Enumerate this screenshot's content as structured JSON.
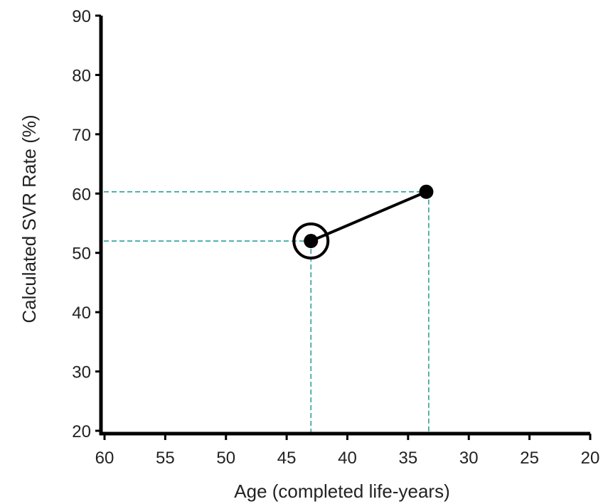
{
  "chart_data": {
    "type": "line",
    "xlabel": "Age (completed life-years)",
    "ylabel": "Calculated SVR Rate (%)",
    "xlim": [
      60,
      20
    ],
    "ylim": [
      20,
      90
    ],
    "x_reversed": true,
    "x_ticks": [
      60,
      55,
      50,
      45,
      40,
      35,
      30,
      25,
      20
    ],
    "y_ticks": [
      20,
      30,
      40,
      50,
      60,
      70,
      80,
      90
    ],
    "grid": false,
    "series": [
      {
        "x": [
          43,
          33.5
        ],
        "y": [
          52,
          60.3
        ],
        "color": "#000000",
        "marker": "filled-circle"
      }
    ],
    "highlighted_point": {
      "x": 43,
      "y": 52,
      "style": "open-circle-ring"
    },
    "guide_lines": {
      "color": "#2aa198",
      "style": "dashed",
      "points": [
        {
          "x": 43,
          "y": 52
        },
        {
          "x": 33.3,
          "y": 60.3
        }
      ]
    }
  }
}
